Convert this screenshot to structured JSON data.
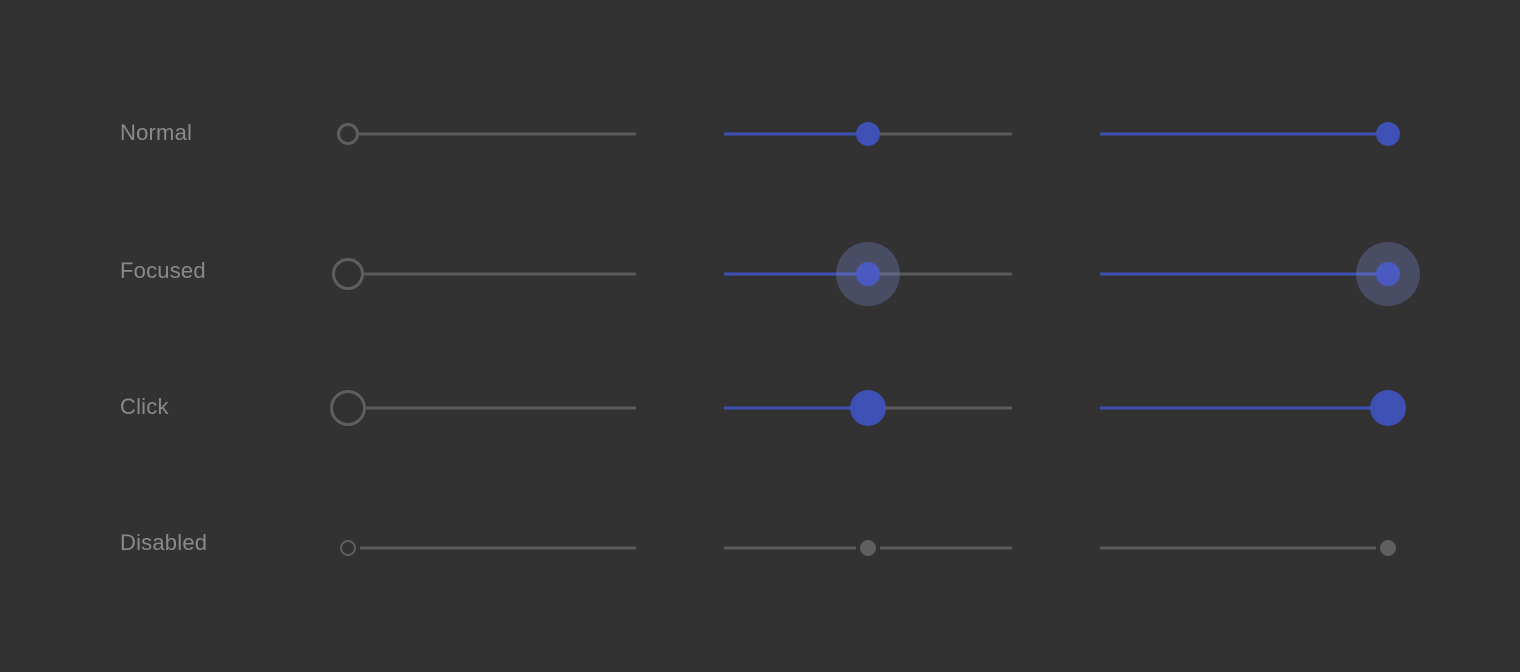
{
  "colors": {
    "background": "#323232",
    "accent": "#3f51b5",
    "track": "#5b5b5b",
    "label": "#8a8a8a",
    "focus_halo": "rgba(117,128,196,0.35)"
  },
  "rows": [
    {
      "label": "Normal",
      "state": "normal"
    },
    {
      "label": "Focused",
      "state": "focused"
    },
    {
      "label": "Click",
      "state": "click"
    },
    {
      "label": "Disabled",
      "state": "disabled"
    }
  ],
  "slider_values": [
    0,
    0.5,
    1
  ]
}
